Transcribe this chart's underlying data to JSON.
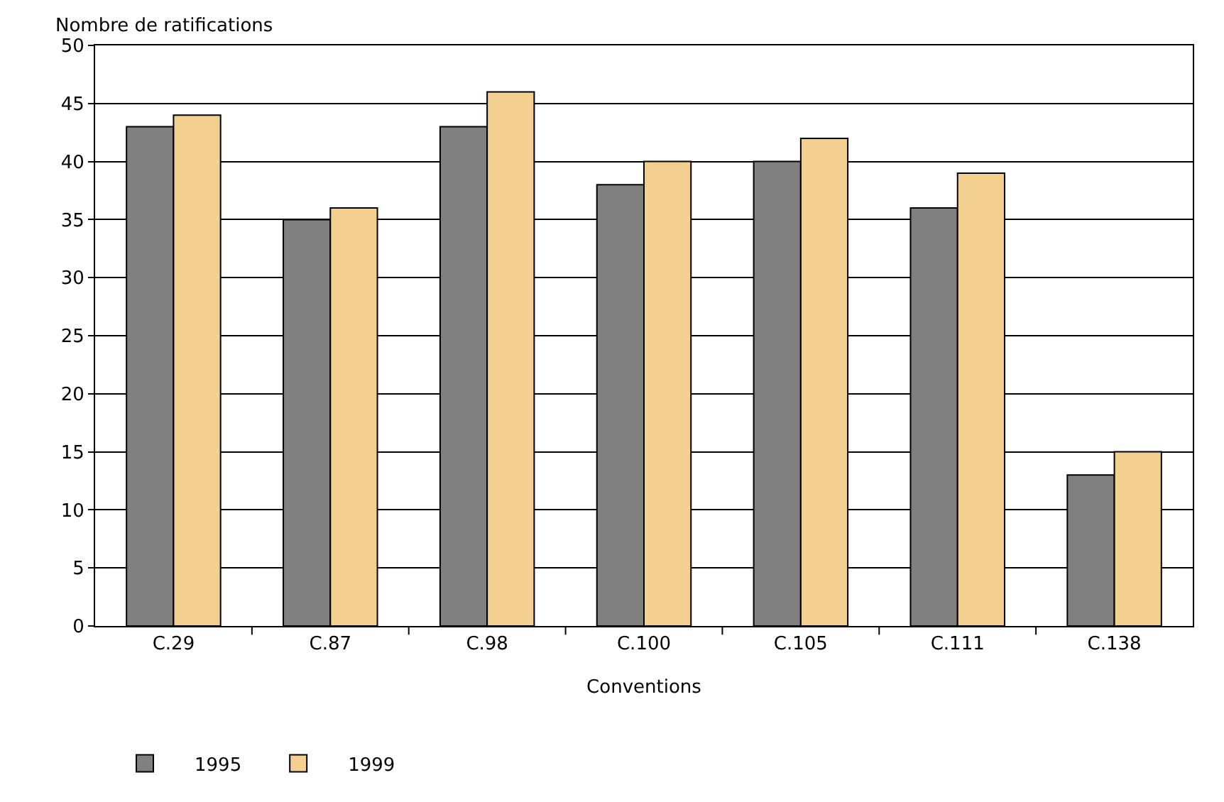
{
  "chart_data": {
    "type": "bar",
    "xlabel": "Conventions",
    "ylabel": "Nombre de ratifications",
    "categories": [
      "C.29",
      "C.87",
      "C.98",
      "C.100",
      "C.105",
      "C.111",
      "C.138"
    ],
    "series": [
      {
        "name": "1995",
        "color": "#808080",
        "values": [
          43,
          35,
          43,
          38,
          40,
          36,
          13
        ]
      },
      {
        "name": "1999",
        "color": "#f3cf90",
        "values": [
          44,
          36,
          46,
          40,
          42,
          39,
          15
        ]
      }
    ],
    "ylim": [
      0,
      50
    ],
    "yticks": [
      0,
      5,
      10,
      15,
      20,
      25,
      30,
      35,
      40,
      45,
      50
    ],
    "grid": "y",
    "legend": "bottom left"
  }
}
